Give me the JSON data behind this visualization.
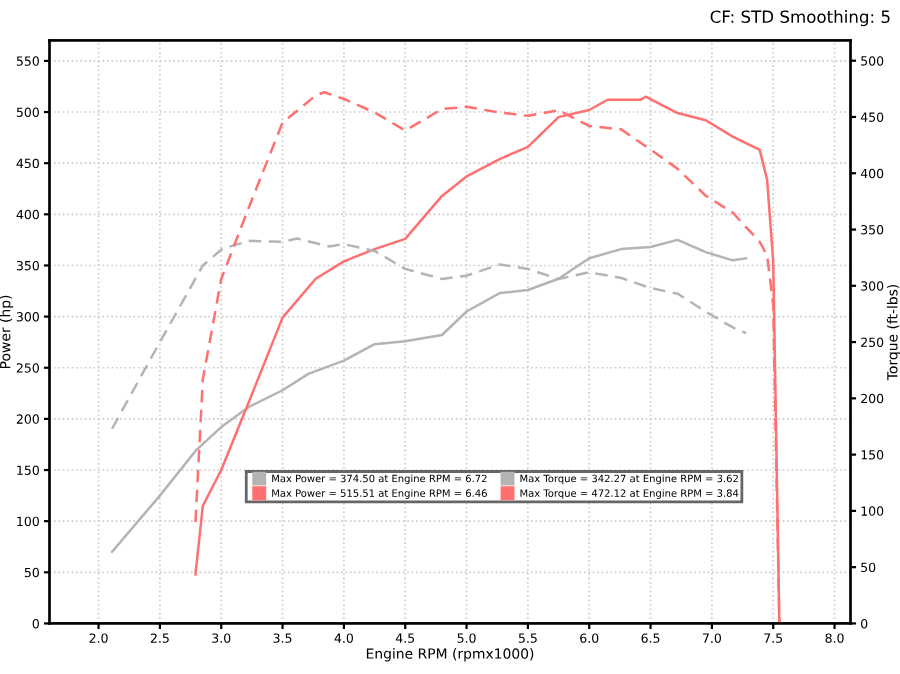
{
  "chart_data": {
    "type": "line",
    "xlabel": "Engine RPM (rpmx1000)",
    "ylabel": "Power (hp)",
    "y2label": "Torque (ft-lbs)",
    "annotations": [
      "CF: STD Smoothing: 5"
    ],
    "xlim": [
      1.6,
      8.13
    ],
    "xticks": [
      {
        "value": 2.0,
        "label": "2.0"
      },
      {
        "value": 2.5,
        "label": "2.5"
      },
      {
        "value": 3.0,
        "label": "3.0"
      },
      {
        "value": 3.5,
        "label": "3.5"
      },
      {
        "value": 4.0,
        "label": "4.0"
      },
      {
        "value": 4.5,
        "label": "4.5"
      },
      {
        "value": 5.0,
        "label": "5.0"
      },
      {
        "value": 5.5,
        "label": "5.5"
      },
      {
        "value": 6.0,
        "label": "6.0"
      },
      {
        "value": 6.5,
        "label": "6.5"
      },
      {
        "value": 7.0,
        "label": "7.0"
      },
      {
        "value": 7.5,
        "label": "7.5"
      },
      {
        "value": 8.0,
        "label": "8.0"
      }
    ],
    "ylim": [
      0,
      570
    ],
    "yticks": [
      0,
      50,
      100,
      150,
      200,
      250,
      300,
      350,
      400,
      450,
      500,
      550
    ],
    "y2lim": [
      0,
      518
    ],
    "y2ticks": [
      0,
      50,
      100,
      150,
      200,
      250,
      300,
      350,
      400,
      450,
      500
    ],
    "grid": true,
    "legend": "bottom",
    "marker": "none",
    "series": [
      {
        "name": "Max Power = 374.50 at Engine RPM = 6.72",
        "color": "#b4b4b4",
        "line_style": "solid",
        "x": [
          2.11,
          2.5,
          2.8,
          3.0,
          3.23,
          3.5,
          3.71,
          4.0,
          4.25,
          4.5,
          4.8,
          5.0,
          5.27,
          5.5,
          5.75,
          6.0,
          6.26,
          6.5,
          6.72,
          6.95,
          7.17,
          7.28
        ],
        "values": [
          70,
          125,
          170,
          192,
          212,
          228,
          244,
          257,
          273,
          276,
          282,
          305,
          323,
          326,
          337,
          357,
          366,
          368,
          375,
          363,
          355,
          357
        ]
      },
      {
        "name": "Max Power = 515.51 at Engine RPM = 6.46",
        "color": "#ff7070",
        "line_style": "solid",
        "x": [
          2.79,
          2.85,
          3.0,
          3.23,
          3.5,
          3.77,
          4.0,
          4.25,
          4.5,
          4.8,
          5.0,
          5.27,
          5.5,
          5.75,
          6.0,
          6.15,
          6.42,
          6.46,
          6.72,
          6.95,
          7.17,
          7.39,
          7.45,
          7.5,
          7.55
        ],
        "values": [
          48,
          115,
          150,
          218,
          299,
          337,
          354,
          366,
          376,
          418,
          437,
          454,
          466,
          495,
          502,
          512,
          512,
          515,
          499,
          492,
          476,
          463,
          434,
          354,
          0
        ]
      },
      {
        "name": "Max Torque = 342.27 at Engine RPM = 3.62",
        "color": "#b4b4b4",
        "line_style": "dashed",
        "axis": "y2",
        "x": [
          2.11,
          2.5,
          2.85,
          3.01,
          3.23,
          3.5,
          3.62,
          3.88,
          4.0,
          4.25,
          4.5,
          4.8,
          5.0,
          5.27,
          5.5,
          5.75,
          6.0,
          6.26,
          6.5,
          6.72,
          6.95,
          7.17,
          7.28
        ],
        "values": [
          173,
          250,
          318,
          333,
          340,
          339,
          342,
          335,
          337,
          331,
          315,
          306,
          309,
          319,
          315,
          306,
          312,
          307,
          298,
          293,
          277,
          263,
          258
        ]
      },
      {
        "name": "Max Torque = 472.12 at Engine RPM = 3.84",
        "color": "#ff7070",
        "line_style": "dashed",
        "axis": "y2",
        "x": [
          2.79,
          2.85,
          3.0,
          3.23,
          3.5,
          3.77,
          3.84,
          4.0,
          4.25,
          4.5,
          4.8,
          5.0,
          5.27,
          5.5,
          5.75,
          6.0,
          6.26,
          6.5,
          6.72,
          6.95,
          7.17,
          7.39,
          7.45,
          7.5,
          7.55
        ],
        "values": [
          90,
          217,
          306,
          371,
          445,
          469,
          472,
          466,
          454,
          438,
          457,
          459,
          454,
          451,
          456,
          442,
          439,
          421,
          404,
          380,
          365,
          339,
          327,
          283,
          0
        ]
      }
    ]
  }
}
